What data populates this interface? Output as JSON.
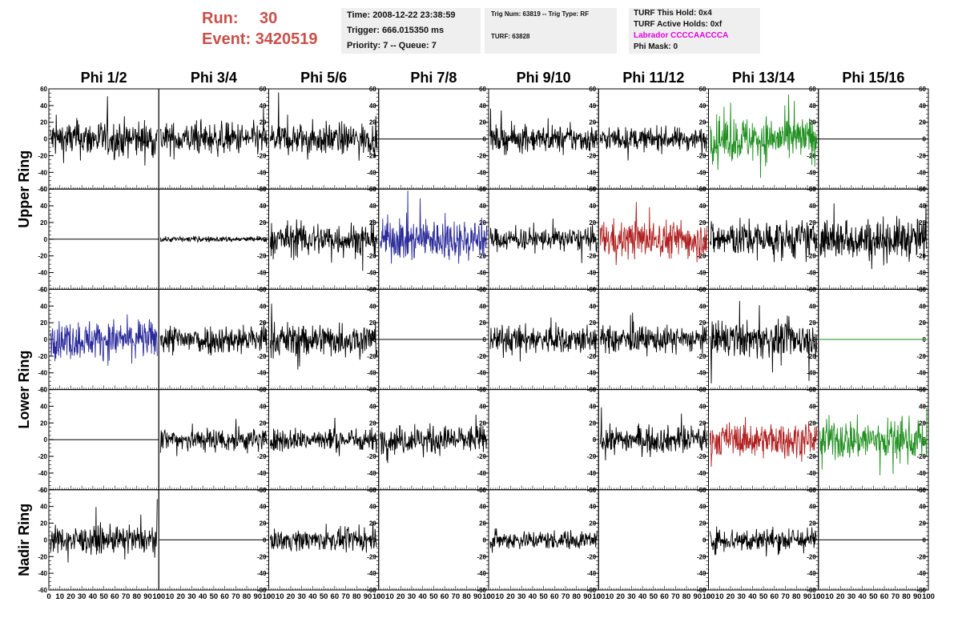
{
  "header": {
    "run_label": "Run:",
    "run_value": "30",
    "event_label": "Event:",
    "event_value": "3420519",
    "time": "Time: 2008-12-22 23:38:59",
    "trigger": "Trigger: 666.015350 ms",
    "priority": "Priority: 7 -- Queue: 7",
    "trig_num": "Trig Num: 63819 -- Trig Type: RF",
    "turf": "TURF: 63828",
    "turf_this_hold": "TURF This Hold: 0x4",
    "turf_active_holds": "TURF Active Holds: 0xf",
    "labrador": "Labrador CCCCAACCCA",
    "phi_mask": "Phi Mask: 0"
  },
  "chart_data": {
    "type": "line",
    "columns": [
      "Phi 1/2",
      "Phi 3/4",
      "Phi 5/6",
      "Phi 7/8",
      "Phi 9/10",
      "Phi 11/12",
      "Phi 13/14",
      "Phi 15/16"
    ],
    "row_labels": [
      {
        "label": "Upper Ring",
        "rows": [
          0,
          1
        ]
      },
      {
        "label": "Lower Ring",
        "rows": [
          2,
          3
        ]
      },
      {
        "label": "Nadir Ring",
        "rows": [
          4,
          4
        ]
      }
    ],
    "ylim": [
      -60,
      60
    ],
    "xlim": [
      0,
      100
    ],
    "y_ticks": [
      "-60",
      "-40",
      "-20",
      "0",
      "20",
      "40",
      "60"
    ],
    "x_ticks": [
      "0",
      "10",
      "20",
      "30",
      "40",
      "50",
      "60",
      "70",
      "80",
      "90",
      "100"
    ],
    "colors": {
      "black": "#000000",
      "green": "#1f8f1f",
      "blue": "#2a2a9a",
      "red": "#b02020"
    },
    "panels": [
      [
        "black:20",
        "black:17",
        "black:17",
        "flat",
        "black:14",
        "black:12",
        "green:24",
        "flat"
      ],
      [
        "flat",
        "black:3",
        "black:18",
        "blue:22",
        "black:12",
        "red:20",
        "black:20",
        "black:22"
      ],
      [
        "blue:20",
        "black:16",
        "black:18",
        "flat",
        "black:15",
        "black:14",
        "black:19",
        "flatgreen"
      ],
      [
        "flat",
        "black:13",
        "black:12",
        "black:15",
        "none",
        "black:14",
        "red:18",
        "green:22"
      ],
      [
        "black:14",
        "flat",
        "black:11",
        "none",
        "black:10",
        "none",
        "black:13",
        "flat"
      ]
    ]
  }
}
